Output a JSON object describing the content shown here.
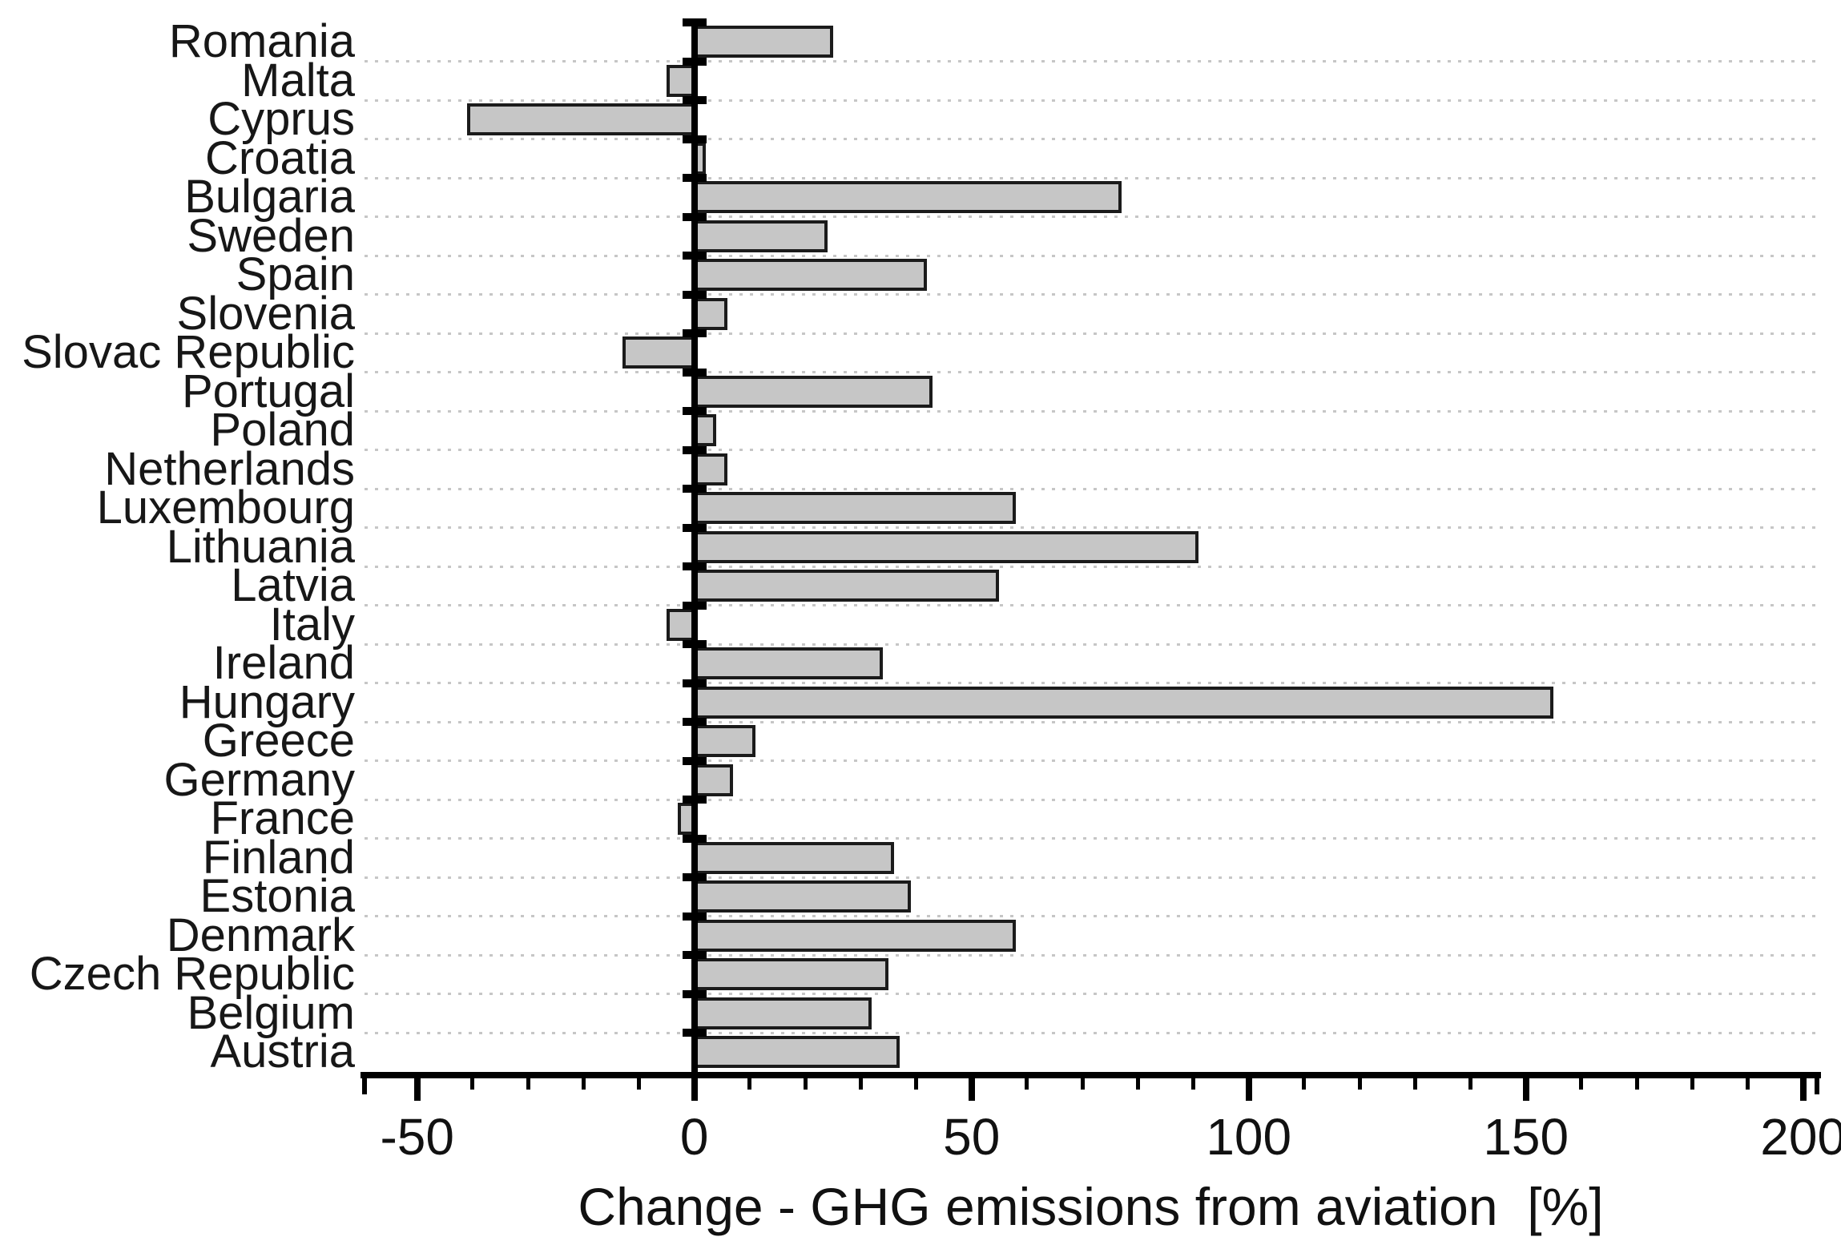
{
  "figure": {
    "background": "#ffffff"
  },
  "chart_data": {
    "type": "bar",
    "orientation": "horizontal",
    "title": "",
    "xlabel": "Change - GHG emissions from aviation  [%]",
    "ylabel": "",
    "unit": "%",
    "categories_top_to_bottom": [
      "Romania",
      "Malta",
      "Cyprus",
      "Croatia",
      "Bulgaria",
      "Sweden",
      "Spain",
      "Slovenia",
      "Slovac Republic",
      "Portugal",
      "Poland",
      "Netherlands",
      "Luxembourg",
      "Lithuania",
      "Latvia",
      "Italy",
      "Ireland",
      "Hungary",
      "Greece",
      "Germany",
      "France",
      "Finland",
      "Estonia",
      "Denmark",
      "Czech Republic",
      "Belgium",
      "Austria"
    ],
    "values": [
      25,
      -5,
      -41,
      2,
      77,
      24,
      42,
      6,
      -13,
      43,
      4,
      6,
      58,
      91,
      55,
      -5,
      34,
      155,
      11,
      7,
      -3,
      36,
      39,
      58,
      35,
      32,
      37
    ],
    "xlim": [
      -59.5,
      202.5
    ],
    "x_major_ticks": [
      -50,
      0,
      50,
      100,
      150,
      200
    ],
    "x_minor_tick_step": 10,
    "grid": "horizontal dotted lines at category boundaries",
    "legend_position": "none",
    "bar_fill_color": "#c6c6c6",
    "bar_border_color": "#1b1b1b",
    "axis_color": "#000000",
    "gridline_color": "#c6c6c6",
    "text_color": "#111111"
  }
}
